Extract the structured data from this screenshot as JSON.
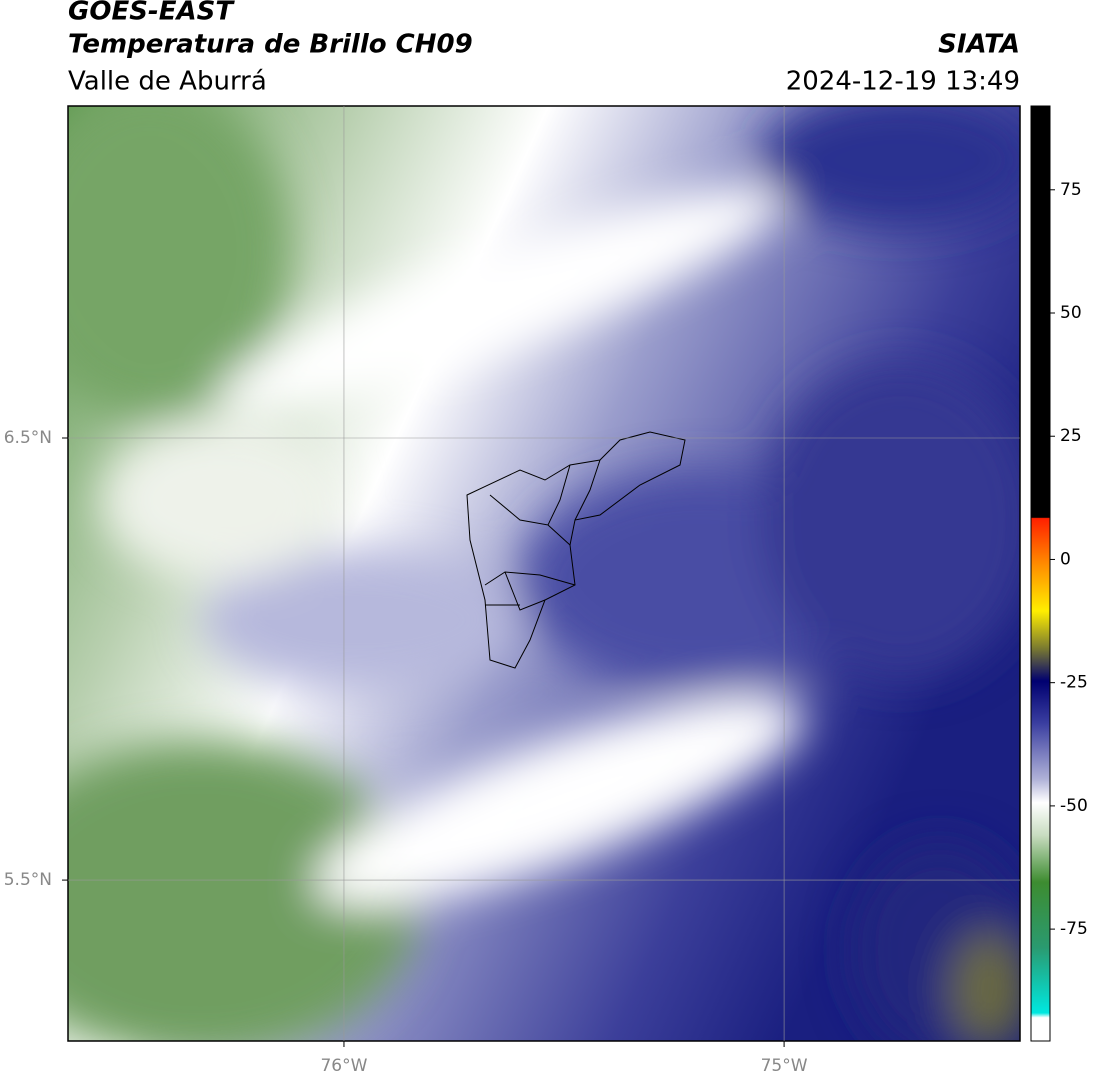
{
  "header": {
    "title": "GOES-EAST",
    "subtitle": "Temperatura de Brillo CH09",
    "region": "Valle de Aburrá",
    "source": "SIATA",
    "timestamp": "2024-12-19 13:49"
  },
  "map": {
    "xlim": [
      -76.627,
      -74.464
    ],
    "ylim": [
      5.136,
      7.251
    ],
    "xticks": [
      {
        "value": -76,
        "label": "76°W"
      },
      {
        "value": -75,
        "label": "75°W"
      }
    ],
    "yticks": [
      {
        "value": 6.5,
        "label": "6.5°N"
      },
      {
        "value": 5.5,
        "label": "5.5°N"
      }
    ],
    "grid": true
  },
  "colorbar": {
    "lim": [
      -97.7,
      92
    ],
    "ticks": [
      75,
      50,
      25,
      0,
      -25,
      -50,
      -75
    ]
  }
}
